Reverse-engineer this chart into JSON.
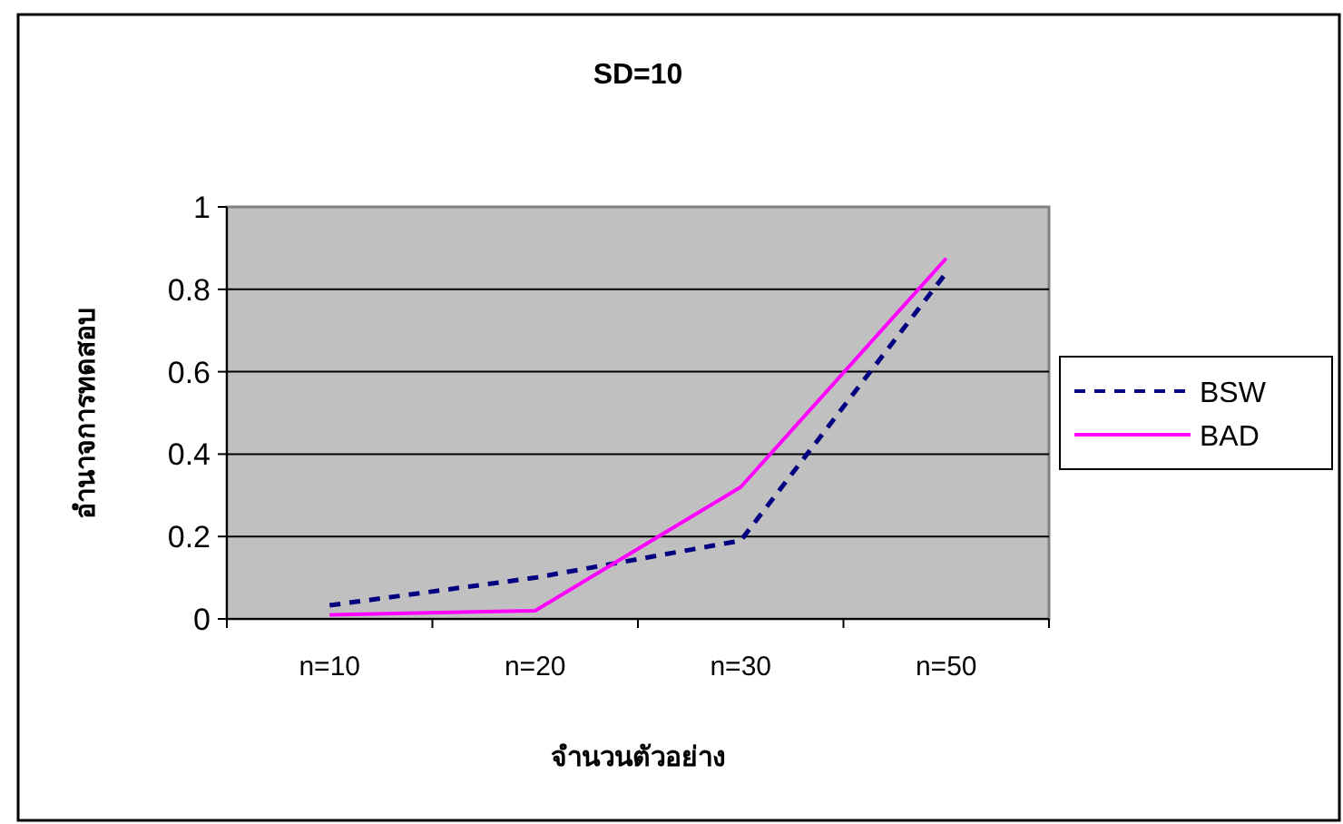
{
  "chart_data": {
    "type": "line",
    "title": "SD=10",
    "xlabel": "จำนวนตัวอย่าง",
    "ylabel": "อำนาจการทดสอบ",
    "categories": [
      "n=10",
      "n=20",
      "n=30",
      "n=50"
    ],
    "series": [
      {
        "name": "BSW",
        "color": "#000080",
        "line_style": "dashed",
        "values": [
          0.033,
          0.1,
          0.19,
          0.84
        ]
      },
      {
        "name": "BAD",
        "color": "#ff00ff",
        "line_style": "solid",
        "values": [
          0.01,
          0.02,
          0.32,
          0.875
        ]
      }
    ],
    "ylim": [
      0,
      1
    ],
    "yticks": [
      0,
      0.2,
      0.4,
      0.6,
      0.8,
      1
    ],
    "grid": "y",
    "legend": "right",
    "marker": "none"
  }
}
